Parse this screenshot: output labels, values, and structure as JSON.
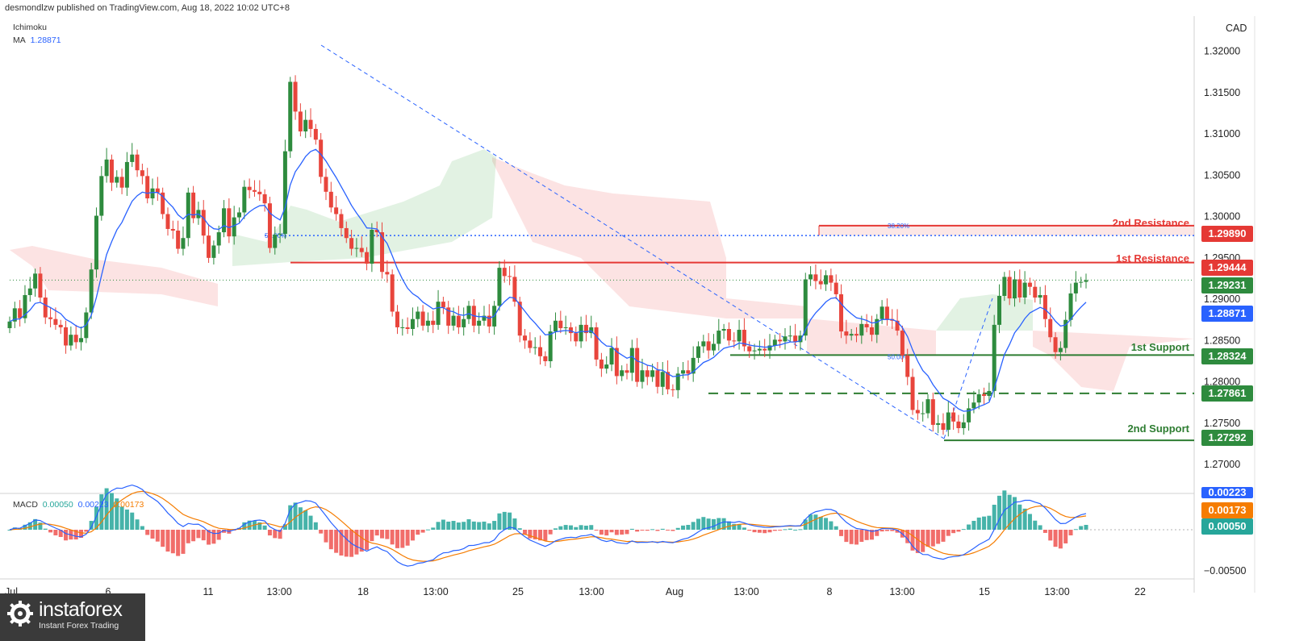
{
  "header": {
    "published": "desmondlzw published on TradingView.com, Aug 18, 2022 10:02 UTC+8"
  },
  "indicators": {
    "ichimoku": "Ichimoku",
    "ma_label": "MA",
    "ma_value": "1.28871"
  },
  "currency": "CAD",
  "levels": {
    "r2": {
      "label": "2nd Resistance",
      "value": "1.29890"
    },
    "r1": {
      "label": "1st Resistance",
      "value": "1.29444"
    },
    "current": {
      "value": "1.29231"
    },
    "ma": {
      "value": "1.28871"
    },
    "s1": {
      "label": "1st Support",
      "value": "1.28324"
    },
    "mid": {
      "value": "1.27861"
    },
    "s2": {
      "label": "2nd Support",
      "value": "1.27292"
    }
  },
  "fib_labels": {
    "a": "50.00%",
    "b": "50.00%",
    "c": "38.20%"
  },
  "macd": {
    "label": "MACD",
    "hist": "0.00050",
    "macd": "0.00223",
    "signal": "0.00173",
    "tag_signal": "0.00173",
    "tag_hist": "0.00050",
    "tag_macd": "0.00223",
    "axis_low": "−0.00500"
  },
  "colors": {
    "up": "#2e8b3e",
    "down": "#e8453c",
    "ma": "#2962ff",
    "resistance": "#e53935",
    "support": "#2e7d32",
    "macd_line": "#2962ff",
    "signal_line": "#f57c00"
  },
  "logo": {
    "brand": "instaforex",
    "tagline": "Instant Forex Trading"
  },
  "chart_data": {
    "type": "candlestick",
    "symbol_quote": "CAD",
    "yticks": [
      "1.32000",
      "1.31500",
      "1.31000",
      "1.30500",
      "1.30000",
      "1.29500",
      "1.29000",
      "1.28500",
      "1.28000",
      "1.27500",
      "1.27000"
    ],
    "ytick_values": [
      1.32,
      1.315,
      1.31,
      1.305,
      1.3,
      1.295,
      1.29,
      1.285,
      1.28,
      1.275,
      1.27
    ],
    "ylim": [
      1.2665,
      1.3262
    ],
    "xticks": [
      "Jul",
      "6",
      "11",
      "13:00",
      "18",
      "13:00",
      "25",
      "13:00",
      "Aug",
      "13:00",
      "8",
      "13:00",
      "15",
      "13:00",
      "22"
    ],
    "closes": [
      1.2873,
      1.2889,
      1.2877,
      1.2905,
      1.2913,
      1.2931,
      1.2902,
      1.2878,
      1.2876,
      1.2869,
      1.2866,
      1.2844,
      1.2857,
      1.2848,
      1.2853,
      1.2884,
      1.2936,
      1.3001,
      1.3049,
      1.3069,
      1.3041,
      1.3048,
      1.3035,
      1.3066,
      1.3075,
      1.3056,
      1.3049,
      1.3022,
      1.3034,
      1.3029,
      1.3003,
      1.2985,
      1.2983,
      1.2961,
      1.2974,
      1.3029,
      1.2998,
      1.3008,
      1.2977,
      1.295,
      1.2965,
      1.2981,
      1.301,
      1.2976,
      1.2999,
      1.3005,
      1.3036,
      1.3032,
      1.303,
      1.3027,
      1.3016,
      1.2962,
      1.2978,
      1.2979,
      1.3079,
      1.3163,
      1.3127,
      1.3103,
      1.3117,
      1.3106,
      1.3093,
      1.3048,
      1.303,
      1.3011,
      1.3003,
      1.2986,
      1.2974,
      1.2961,
      1.2962,
      1.2957,
      1.2943,
      1.2984,
      1.2981,
      1.2933,
      1.293,
      1.2885,
      1.2866,
      1.2866,
      1.2864,
      1.2876,
      1.2885,
      1.2868,
      1.2874,
      1.2869,
      1.2897,
      1.289,
      1.2868,
      1.288,
      1.2866,
      1.2876,
      1.2892,
      1.2868,
      1.2874,
      1.288,
      1.2867,
      1.2892,
      1.2938,
      1.2928,
      1.2927,
      1.2897,
      1.2856,
      1.285,
      1.2841,
      1.2842,
      1.2831,
      1.2825,
      1.2861,
      1.2874,
      1.2865,
      1.2866,
      1.2859,
      1.2849,
      1.2869,
      1.2859,
      1.2866,
      1.2827,
      1.2816,
      1.2821,
      1.2841,
      1.2807,
      1.2814,
      1.2811,
      1.2841,
      1.28,
      1.2814,
      1.2806,
      1.2814,
      1.2794,
      1.2812,
      1.2791,
      1.279,
      1.281,
      1.2814,
      1.281,
      1.2829,
      1.2843,
      1.2849,
      1.2838,
      1.2846,
      1.2862,
      1.2864,
      1.285,
      1.2849,
      1.2863,
      1.2843,
      1.2837,
      1.2838,
      1.284,
      1.2838,
      1.2844,
      1.2851,
      1.2849,
      1.2855,
      1.2856,
      1.2848,
      1.2856,
      1.2924,
      1.293,
      1.2922,
      1.2918,
      1.2929,
      1.292,
      1.2906,
      1.2861,
      1.2856,
      1.2858,
      1.2856,
      1.287,
      1.2866,
      1.2857,
      1.2876,
      1.2891,
      1.2876,
      1.2874,
      1.2862,
      1.2832,
      1.2806,
      1.2766,
      1.2762,
      1.2762,
      1.2779,
      1.2748,
      1.275,
      1.2742,
      1.2763,
      1.2752,
      1.2744,
      1.2751,
      1.2768,
      1.2775,
      1.2785,
      1.2783,
      1.2789,
      1.2869,
      1.2904,
      1.2927,
      1.2901,
      1.2924,
      1.2902,
      1.292,
      1.2915,
      1.2902,
      1.2905,
      1.2876,
      1.2854,
      1.2836,
      1.2841,
      1.2875,
      1.2907,
      1.292,
      1.2921,
      1.2923
    ]
  }
}
